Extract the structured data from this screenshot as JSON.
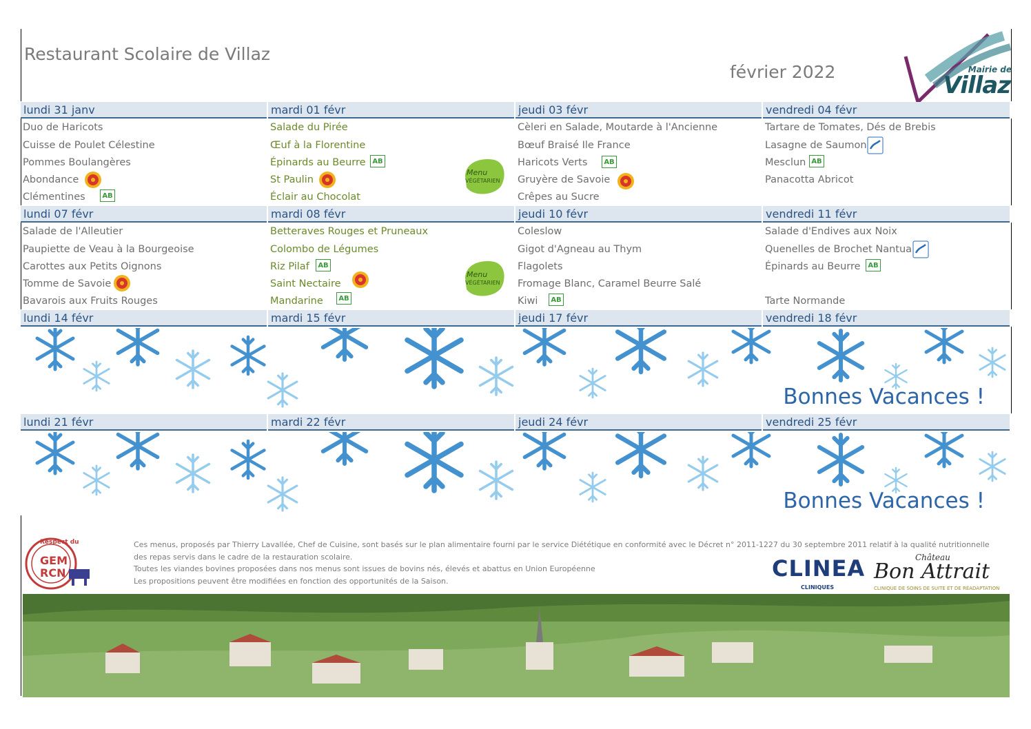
{
  "header": {
    "title": "Restaurant Scolaire de Villaz",
    "month": "février 2022",
    "logo_top": "Mairie de",
    "logo_main": "Villaz"
  },
  "weeks": [
    {
      "days": [
        {
          "label": "lundi 31 janv",
          "dishes": [
            {
              "text": "Duo de Haricots"
            },
            {
              "text": "Cuisse de Poulet Célestine"
            },
            {
              "text": "Pommes Boulangères"
            },
            {
              "text": "Abondance",
              "badge": "label-rouge"
            },
            {
              "text": "Clémentines",
              "badge": "ab"
            }
          ]
        },
        {
          "label": "mardi 01 févr",
          "veg": true,
          "dishes": [
            {
              "text": "Salade du Pirée"
            },
            {
              "text": "Œuf à la Florentine"
            },
            {
              "text": "Épinards au Beurre",
              "badge": "ab"
            },
            {
              "text": "St Paulin",
              "badge": "label-rouge"
            },
            {
              "text": "Éclair au Chocolat"
            }
          ]
        },
        {
          "label": "jeudi 03 févr",
          "dishes": [
            {
              "text": "Cèleri en Salade, Moutarde à l'Ancienne"
            },
            {
              "text": "Bœuf Braisé Ile France"
            },
            {
              "text": " Haricots Verts",
              "badge": "ab"
            },
            {
              "text": "Gruyère de Savoie",
              "badge": "label-rouge"
            },
            {
              "text": "Crêpes au Sucre"
            }
          ]
        },
        {
          "label": "vendredi 04 févr",
          "dishes": [
            {
              "text": "Tartare de Tomates, Dés de Brebis"
            },
            {
              "text": "Lasagne de Saumon",
              "badge": "msc"
            },
            {
              "text": "Mesclun",
              "badge": "ab"
            },
            {
              "text": "Panacotta Abricot"
            },
            {
              "text": ""
            }
          ]
        }
      ]
    },
    {
      "days": [
        {
          "label": "lundi 07 févr",
          "dishes": [
            {
              "text": "Salade de l'Alleutier"
            },
            {
              "text": "Paupiette de Veau à la Bourgeoise"
            },
            {
              "text": "Carottes aux Petits Oignons"
            },
            {
              "text": "Tomme de Savoie",
              "badge": "label-rouge"
            },
            {
              "text": "Bavarois aux Fruits Rouges"
            }
          ]
        },
        {
          "label": "mardi 08 févr",
          "veg": true,
          "dishes": [
            {
              "text": "Betteraves Rouges et Pruneaux"
            },
            {
              "text": "Colombo de Légumes"
            },
            {
              "text": "Riz Pilaf",
              "badge": "ab"
            },
            {
              "text": "Saint Nectaire",
              "badge": "label-rouge"
            },
            {
              "text": "Mandarine",
              "badge": "ab"
            }
          ]
        },
        {
          "label": "jeudi 10 févr",
          "dishes": [
            {
              "text": "Coleslow"
            },
            {
              "text": "Gigot d'Agneau au Thym"
            },
            {
              "text": "Flagolets"
            },
            {
              "text": "Fromage Blanc, Caramel Beurre Salé"
            },
            {
              "text": "Kiwi",
              "badge": "ab"
            }
          ]
        },
        {
          "label": "vendredi 11 févr",
          "dishes": [
            {
              "text": "Salade d'Endives aux Noix"
            },
            {
              "text": "Quenelles de Brochet Nantua",
              "badge": "msc"
            },
            {
              "text": "Épinards au Beurre",
              "badge": "ab"
            },
            {
              "text": ""
            },
            {
              "text": "Tarte Normande"
            }
          ]
        }
      ]
    },
    {
      "days": [
        {
          "label": "lundi 14 févr"
        },
        {
          "label": "mardi 15 févr"
        },
        {
          "label": "jeudi 17 févr"
        },
        {
          "label": "vendredi 18 févr"
        }
      ],
      "holiday": "Bonnes Vacances !"
    },
    {
      "days": [
        {
          "label": "lundi 21 févr"
        },
        {
          "label": "mardi 22 févr"
        },
        {
          "label": "jeudi 24 févr"
        },
        {
          "label": "vendredi 25 févr"
        }
      ],
      "holiday": "Bonnes Vacances !"
    }
  ],
  "veg_badge": {
    "line1": "Menu",
    "line2": "VÉGÉTARIEN"
  },
  "ab_label": "AB",
  "footer": {
    "lines": [
      "Ces menus, proposés par Thierry Lavallée, Chef de Cuisine, sont basés sur le plan alimentaire fourni par le service Diététique en conformité avec le Décret n° 2011-1227 du 30 septembre 2011 relatif à la qualité nutritionnelle",
      "des repas servis dans le cadre de la restauration scolaire.",
      "Toutes les viandes bovines proposées dans nos menus sont issues de bovins nés, élevés et abattus en Union Européenne",
      "Les propositions peuvent être modifiées en fonction des opportunités de la Saison."
    ],
    "gem_top": "Respect du",
    "gem_line1": "GEM",
    "gem_line2": "RCN",
    "clinea": "CLINEA",
    "clinea_sub": "CLINIQUES",
    "chateau_top": "Château",
    "chateau_main": "Bon Attrait",
    "chateau_sub": "CLINIQUE DE SOINS DE SUITE ET DE RÉADAPTATION"
  },
  "colors": {
    "accent": "#2a5384",
    "header_bg": "#dde6ef",
    "vacances": "#2d66a8",
    "veg_text": "#6b8a2a"
  }
}
